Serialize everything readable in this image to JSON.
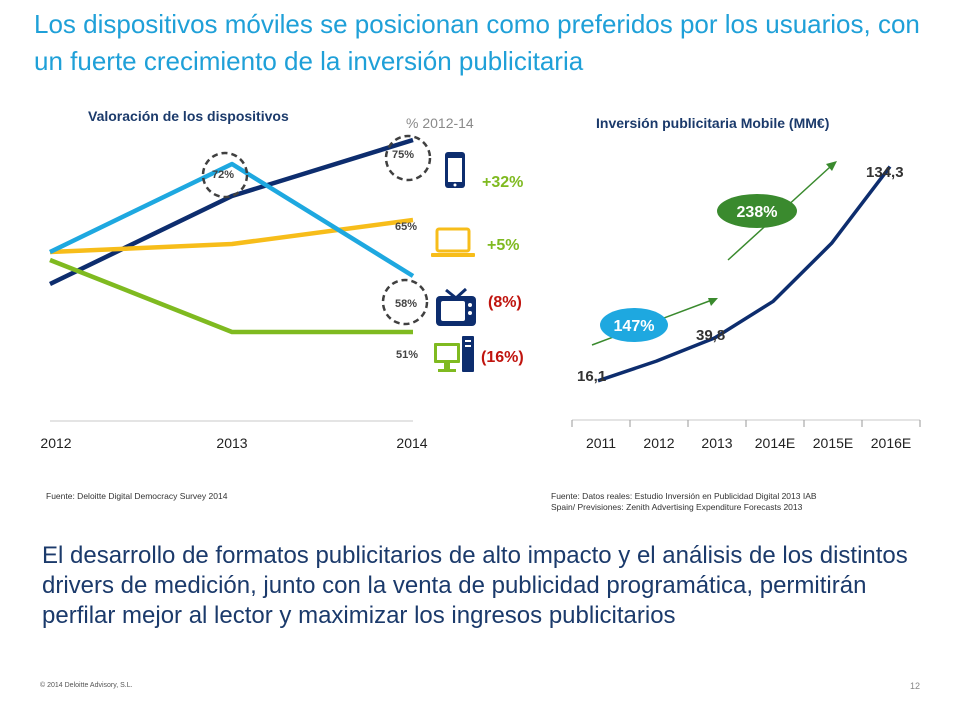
{
  "slide": {
    "title": "Los dispositivos móviles se posicionan como preferidos por los usuarios, con un fuerte crecimiento de la inversión publicitaria",
    "body_text": "El desarrollo de formatos publicitarios de alto impacto y el análisis de los distintos drivers de medición, junto con la venta de publicidad programática, permitirán perfilar mejor al lector y maximizar los ingresos publicitarios",
    "copyright": "© 2014 Deloitte Advisory, S.L.",
    "page_number": "12",
    "colors": {
      "title": "#1fa0d8",
      "smartphone": "#0d2d6e",
      "laptop": "#f7bd1a",
      "tv": "#1ea8e0",
      "desktop": "#7fba20",
      "positive": "#7fba20",
      "negative": "#c0140e",
      "growth_bubble_1": "#1ea8e0",
      "growth_bubble_2": "#3a8a2e"
    }
  },
  "left_chart": {
    "title": "Valoración de los dispositivos",
    "change_header": "% 2012-14",
    "source": "Fuente: Deloitte Digital Democracy Survey 2014",
    "callouts": [
      "72%",
      "75%",
      "65%",
      "58%",
      "51%"
    ],
    "legend": [
      {
        "device": "smartphone",
        "icon": "smartphone-icon",
        "change": "+32%",
        "sign": "positive"
      },
      {
        "device": "laptop",
        "icon": "laptop-icon",
        "change": "+5%",
        "sign": "positive"
      },
      {
        "device": "tv",
        "icon": "tv-icon",
        "change": "(8%)",
        "sign": "negative"
      },
      {
        "device": "desktop",
        "icon": "desktop-icon",
        "change": "(16%)",
        "sign": "negative"
      }
    ]
  },
  "right_chart": {
    "title": "Inversión publicitaria Mobile (MM€)",
    "source_lines": [
      "Fuente: Datos reales: Estudio Inversión en Publicidad Digital 2013 IAB",
      "Spain/ Previsiones: Zenith Advertising Expenditure Forecasts 2013"
    ],
    "growth_labels": [
      "147%",
      "238%"
    ]
  },
  "chart_data": [
    {
      "type": "line",
      "title": "Valoración de los dispositivos",
      "x": [
        "2012",
        "2013",
        "2014"
      ],
      "ylim": [
        40,
        80
      ],
      "series": [
        {
          "values": [
            57,
            68,
            75
          ]
        },
        {
          "values": [
            61,
            62,
            65
          ]
        },
        {
          "values": [
            61,
            72,
            58
          ]
        },
        {
          "values": [
            60,
            51,
            51
          ]
        }
      ]
    },
    {
      "type": "line",
      "title": "Inversión publicitaria Mobile (MM€)",
      "x": [
        "2011",
        "2012",
        "2013",
        "2014E",
        "2015E",
        "2016E"
      ],
      "ylim": [
        0,
        160
      ],
      "series": [
        {
          "values": [
            16.1,
            27,
            39.8,
            60,
            92,
            134.3
          ]
        }
      ],
      "data_labels": [
        "16,1",
        "39,8",
        "134,3"
      ]
    }
  ]
}
